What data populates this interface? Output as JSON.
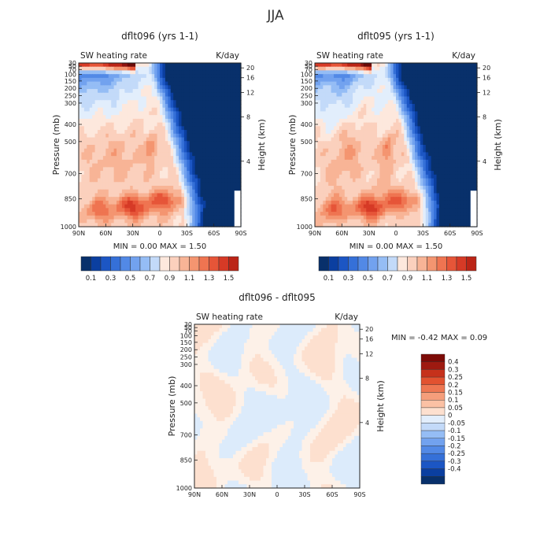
{
  "page_title": "JJA",
  "colors": {
    "blue_ramp": [
      "#08306b",
      "#0b3fa0",
      "#1c56c4",
      "#3570d8",
      "#5289e6",
      "#72a2ef",
      "#95bdf5",
      "#c3daf9",
      "#e2eefc"
    ],
    "red_ramp": [
      "#fde8dd",
      "#fbd0bd",
      "#f8b496",
      "#f49570",
      "#ef7451",
      "#e65538",
      "#d63a26",
      "#bb2416",
      "#8f1410",
      "#6b0a08"
    ],
    "diff_colorbar": [
      "#08306b",
      "#0b3fa0",
      "#1c56c4",
      "#3570d8",
      "#5289e6",
      "#72a2ef",
      "#95bdf5",
      "#c3daf9",
      "#e2eefc",
      "#fde0cf",
      "#fbc1a4",
      "#f59e7b",
      "#ee7752",
      "#e25230",
      "#c6311b",
      "#9e1a10",
      "#7d0b07"
    ]
  },
  "chart_data": [
    {
      "type": "heatmap",
      "title": "dflt096 (yrs 1-1)",
      "left_label": "SW heating rate",
      "right_label": "K/day",
      "ylabel": "Pressure (mb)",
      "ylabel_right": "Height (km)",
      "x_ticks": [
        "90N",
        "60N",
        "30N",
        "0",
        "30S",
        "60S",
        "90S"
      ],
      "y_ticks": [
        "30",
        "50",
        "70",
        "100",
        "150",
        "200",
        "250",
        "300",
        "400",
        "500",
        "700",
        "850",
        "1000"
      ],
      "height_ticks": [
        "20",
        "16",
        "12",
        "8",
        "4"
      ],
      "stats": "MIN =    0.00   MAX =    1.50",
      "colorbar_labels": [
        "0.1",
        "0.3",
        "0.5",
        "0.7",
        "0.9",
        "1.1",
        "1.3",
        "1.5"
      ],
      "colorbar_levels": 16,
      "value_range": [
        0.0,
        1.5
      ]
    },
    {
      "type": "heatmap",
      "title": "dflt095 (yrs 1-1)",
      "left_label": "SW heating rate",
      "right_label": "K/day",
      "ylabel": "Pressure (mb)",
      "ylabel_right": "Height (km)",
      "x_ticks": [
        "90N",
        "60N",
        "30N",
        "0",
        "30S",
        "60S",
        "90S"
      ],
      "y_ticks": [
        "30",
        "50",
        "70",
        "100",
        "150",
        "200",
        "250",
        "300",
        "400",
        "500",
        "700",
        "850",
        "1000"
      ],
      "height_ticks": [
        "20",
        "16",
        "12",
        "8",
        "4"
      ],
      "stats": "MIN =    0.00   MAX =    1.50",
      "colorbar_labels": [
        "0.1",
        "0.3",
        "0.5",
        "0.7",
        "0.9",
        "1.1",
        "1.3",
        "1.5"
      ],
      "colorbar_levels": 16,
      "value_range": [
        0.0,
        1.5
      ]
    },
    {
      "type": "heatmap",
      "title": "dflt096 - dflt095",
      "left_label": "SW heating rate",
      "right_label": "K/day",
      "ylabel": "Pressure (mb)",
      "ylabel_right": "Height (km)",
      "x_ticks": [
        "90N",
        "60N",
        "30N",
        "0",
        "30S",
        "60S",
        "90S"
      ],
      "y_ticks": [
        "30",
        "50",
        "70",
        "100",
        "150",
        "200",
        "250",
        "300",
        "400",
        "500",
        "700",
        "850",
        "1000"
      ],
      "height_ticks": [
        "20",
        "16",
        "12",
        "8",
        "4"
      ],
      "stats": "MIN =   -0.42   MAX =    0.09",
      "colorbar_labels": [
        "0.4",
        "0.3",
        "0.25",
        "0.2",
        "0.15",
        "0.1",
        "0.05",
        "0",
        "-0.05",
        "-0.1",
        "-0.15",
        "-0.2",
        "-0.25",
        "-0.3",
        "-0.4"
      ],
      "value_range": [
        -0.42,
        0.09
      ]
    }
  ]
}
